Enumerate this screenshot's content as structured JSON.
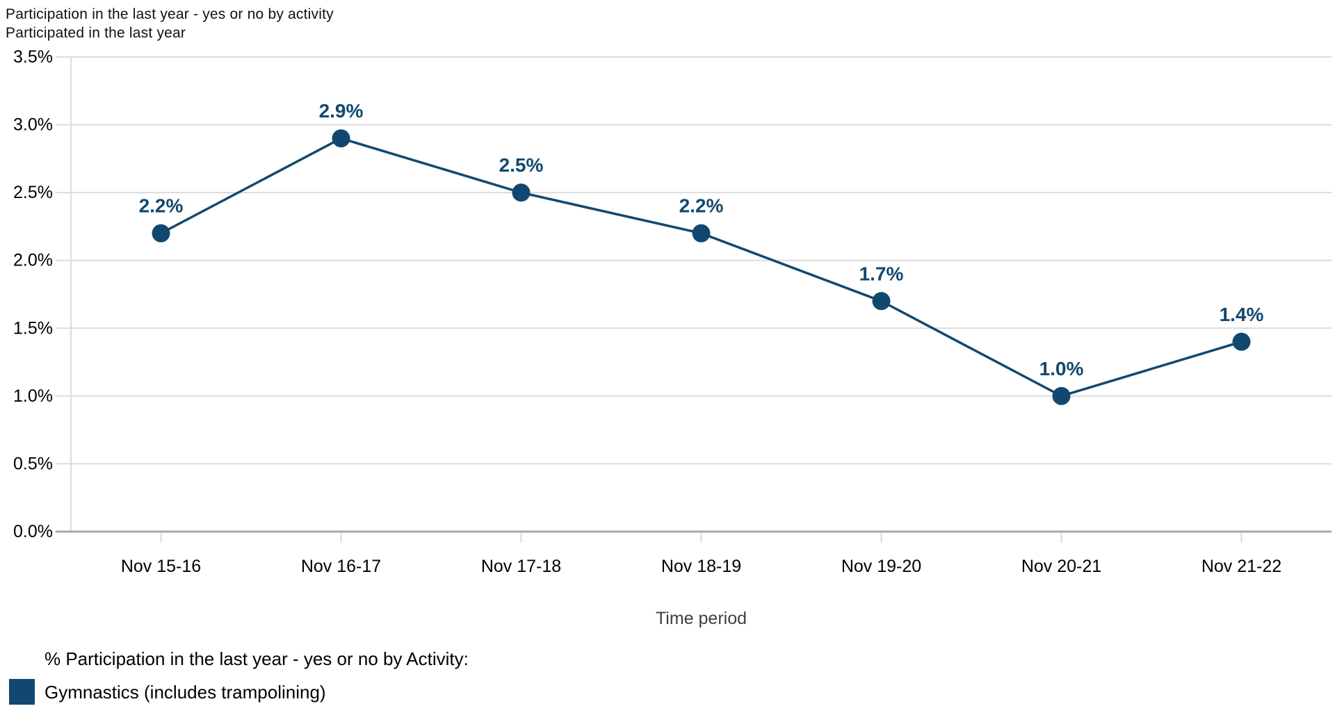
{
  "header": {
    "title": "Participation in the last year - yes or no by activity",
    "y_axis_title": "Participated in the last year"
  },
  "chart_data": {
    "type": "line",
    "title": "Participation in the last year - yes or no by activity",
    "subtitle": "Participated in the last year",
    "categories": [
      "Nov 15-16",
      "Nov 16-17",
      "Nov 17-18",
      "Nov 18-19",
      "Nov 19-20",
      "Nov 20-21",
      "Nov 21-22"
    ],
    "series": [
      {
        "name": "Gymnastics (includes trampolining)",
        "values": [
          2.2,
          2.9,
          2.5,
          2.2,
          1.7,
          1.0,
          1.4
        ],
        "point_labels": [
          "2.2%",
          "2.9%",
          "2.5%",
          "2.2%",
          "1.7%",
          "1.0%",
          "1.4%"
        ],
        "color": "#12486F"
      }
    ],
    "xlabel": "Time period",
    "ylabel": "Participated in the last year",
    "ylim": [
      0,
      3.5
    ],
    "y_tick_step": 0.5,
    "y_tick_labels": [
      "3.5%",
      "3.0%",
      "2.5%",
      "2.0%",
      "1.5%",
      "1.0%",
      "0.5%",
      "0.0%"
    ],
    "grid": true,
    "legend_position": "bottom-left"
  },
  "legend": {
    "title": "% Participation in the last year - yes or no by Activity:",
    "items": [
      {
        "label": "Gymnastics (includes trampolining)",
        "color": "#12486F"
      }
    ]
  },
  "colors": {
    "series": "#12486F",
    "gridline": "#DBDBDB",
    "axis_line": "#A7A7A7",
    "tick_mark": "#D9D9D9",
    "tick_text": "#000000",
    "xlabel_text": "#3F3F3F"
  }
}
